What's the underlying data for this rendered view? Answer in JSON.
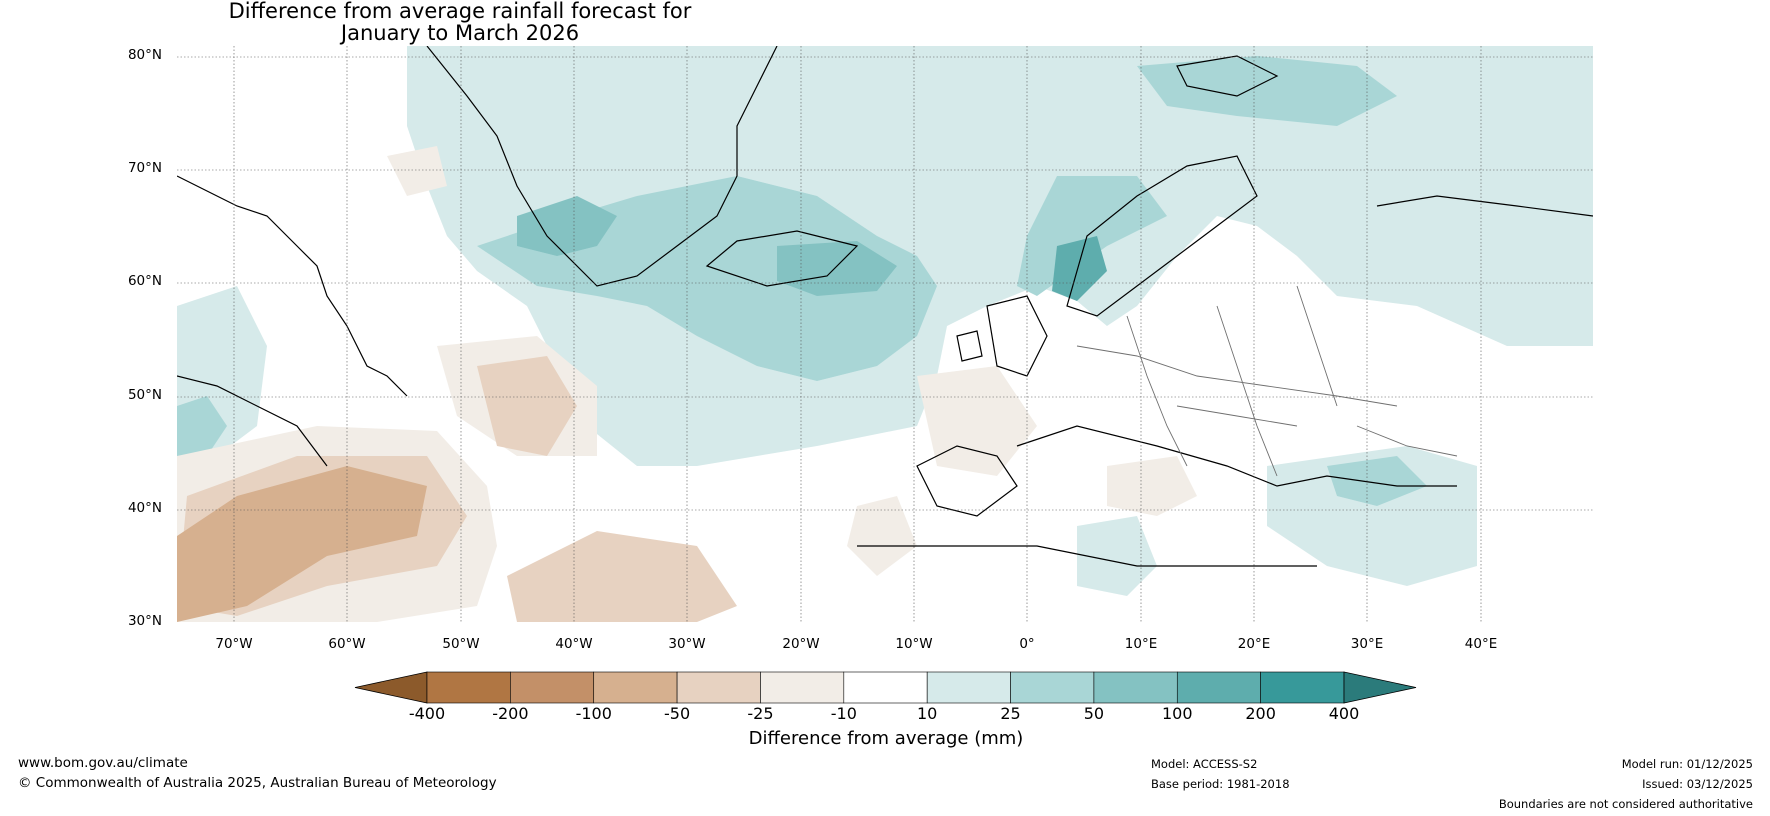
{
  "title": {
    "line1": "Difference from average rainfall forecast for",
    "line2": "January to March 2026"
  },
  "map": {
    "latitude_labels": [
      "80°N",
      "70°N",
      "60°N",
      "50°N",
      "40°N",
      "30°N"
    ],
    "longitude_labels": [
      "70°W",
      "60°W",
      "50°W",
      "40°W",
      "30°W",
      "20°W",
      "10°W",
      "0°",
      "10°E",
      "20°E",
      "30°E",
      "40°E"
    ],
    "colors": {
      "ocean": "#ffffff",
      "coast": "#000000",
      "border": "#6f6f6f",
      "grid": "#555555"
    }
  },
  "colorbar": {
    "title": "Difference from average (mm)",
    "tick_labels": [
      "-400",
      "-200",
      "-100",
      "-50",
      "-25",
      "-10",
      "10",
      "25",
      "50",
      "100",
      "200",
      "400"
    ],
    "colors": [
      "#8c5a2b",
      "#b07643",
      "#c39068",
      "#d6b08f",
      "#e7d2c1",
      "#f2ede7",
      "#ffffff",
      "#d6eaea",
      "#a9d6d6",
      "#84c2c2",
      "#5eadad",
      "#37999a",
      "#2b7b7b"
    ]
  },
  "footer": {
    "website": "www.bom.gov.au/climate",
    "copyright": "© Commonwealth of Australia 2025, Australian Bureau of Meteorology",
    "model": "Model: ACCESS-S2",
    "base_period": "Base period: 1981-2018",
    "model_run": "Model run: 01/12/2025",
    "issued": "Issued: 03/12/2025",
    "disclaimer": "Boundaries are not considered authoritative"
  }
}
